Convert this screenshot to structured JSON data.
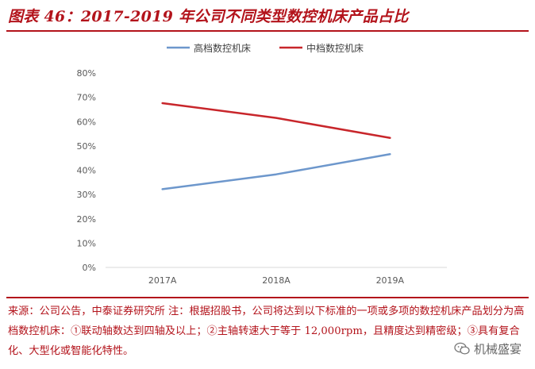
{
  "figure": {
    "title": "图表 46：2017-2019 年公司不同类型数控机床产品占比"
  },
  "chart_data": {
    "type": "line",
    "title": "",
    "xlabel": "",
    "ylabel": "",
    "categories": [
      "2017A",
      "2018A",
      "2019A"
    ],
    "series": [
      {
        "name": "高档数控机床",
        "values": [
          32.2,
          38.3,
          46.6
        ],
        "color": "#6d97cc"
      },
      {
        "name": "中档数控机床",
        "values": [
          67.6,
          61.5,
          53.3
        ],
        "color": "#c8262b"
      }
    ],
    "y_ticks": [
      "0%",
      "10%",
      "20%",
      "30%",
      "40%",
      "50%",
      "60%",
      "70%",
      "80%"
    ],
    "y_tick_values": [
      0,
      10,
      20,
      30,
      40,
      50,
      60,
      70,
      80
    ],
    "ylim": [
      0,
      80
    ],
    "y_format": "percent",
    "grid": false,
    "legend_position": "top"
  },
  "note": {
    "text": "来源：公司公告，中泰证券研究所 注：根据招股书，公司将达到以下标准的一项或多项的数控机床产品划分为高档数控机床：①联动轴数达到四轴及以上；②主轴转速大于等于 12,000rpm，且精度达到精密级；③具有复合化、大型化或智能化特性。"
  },
  "watermark": {
    "text": "机械盛宴",
    "icon": "wechat-icon"
  },
  "colors": {
    "accent": "#b3131b",
    "axis_text": "#595959",
    "axis_line": "#d9d9d9"
  }
}
